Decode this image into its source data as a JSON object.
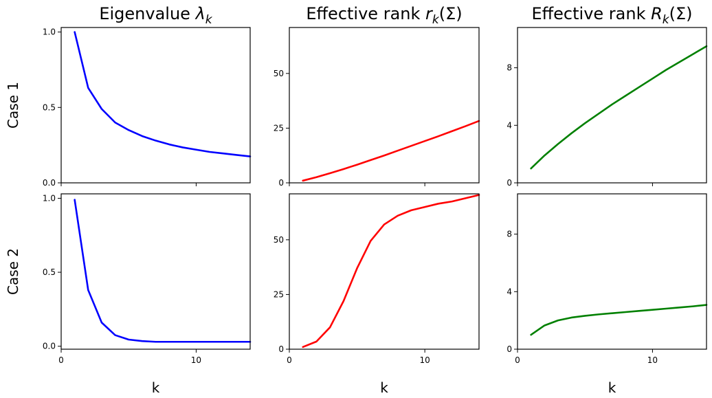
{
  "figure": {
    "column_titles": [
      {
        "text": "Eigenvalue ",
        "math": "λ",
        "sub": "k",
        "tail": ""
      },
      {
        "text": "Effective rank ",
        "math": "r",
        "sub": "k",
        "tail": "(Σ)"
      },
      {
        "text": "Effective rank ",
        "math": "R",
        "sub": "k",
        "tail": "(Σ)"
      }
    ],
    "row_labels": [
      "Case 1",
      "Case 2"
    ],
    "xlabel": "k"
  },
  "chart_data": [
    {
      "type": "line",
      "title": "Eigenvalue λ_k",
      "row_label": "Case 1",
      "xlabel": "",
      "xlim": [
        0,
        14
      ],
      "ylim": [
        0,
        1.03
      ],
      "xticks": [
        0,
        10
      ],
      "yticks": [
        0.0,
        0.5,
        1.0
      ],
      "ytick_labels": [
        "0.0",
        "0.5",
        "1.0"
      ],
      "show_xticklabels": false,
      "color": "#0000ff",
      "x": [
        1,
        2,
        3,
        4,
        5,
        6,
        7,
        8,
        9,
        10,
        11,
        12,
        13,
        14
      ],
      "y": [
        1.0,
        0.63,
        0.49,
        0.4,
        0.35,
        0.31,
        0.28,
        0.255,
        0.235,
        0.22,
        0.205,
        0.195,
        0.185,
        0.175
      ]
    },
    {
      "type": "line",
      "title": "Effective rank r_k(Σ)",
      "row_label": "Case 1",
      "xlabel": "",
      "xlim": [
        0,
        14
      ],
      "ylim": [
        0,
        71
      ],
      "xticks": [
        0,
        10
      ],
      "yticks": [
        0,
        25,
        50
      ],
      "ytick_labels": [
        "0",
        "25",
        "50"
      ],
      "show_xticklabels": false,
      "color": "#ff0000",
      "x": [
        1,
        2,
        3,
        4,
        5,
        6,
        7,
        8,
        9,
        10,
        11,
        12,
        13,
        14
      ],
      "y": [
        1,
        2.6,
        4.4,
        6.3,
        8.3,
        10.4,
        12.5,
        14.7,
        16.9,
        19.1,
        21.3,
        23.6,
        25.9,
        28.3
      ]
    },
    {
      "type": "line",
      "title": "Effective rank R_k(Σ)",
      "row_label": "Case 1",
      "xlabel": "",
      "xlim": [
        0,
        14
      ],
      "ylim": [
        0,
        10.8
      ],
      "xticks": [
        0,
        10
      ],
      "yticks": [
        0,
        4,
        8
      ],
      "ytick_labels": [
        "0",
        "4",
        "8"
      ],
      "show_xticklabels": false,
      "color": "#008000",
      "x": [
        1,
        2,
        3,
        4,
        5,
        6,
        7,
        8,
        9,
        10,
        11,
        12,
        13,
        14
      ],
      "y": [
        1.0,
        1.9,
        2.7,
        3.45,
        4.15,
        4.8,
        5.45,
        6.05,
        6.65,
        7.25,
        7.85,
        8.4,
        8.95,
        9.5
      ]
    },
    {
      "type": "line",
      "title": "",
      "row_label": "Case 2",
      "xlabel": "k",
      "xlim": [
        0,
        14
      ],
      "ylim": [
        -0.02,
        1.03
      ],
      "xticks": [
        0,
        10
      ],
      "yticks": [
        0.0,
        0.5,
        1.0
      ],
      "ytick_labels": [
        "0.0",
        "0.5",
        "1.0"
      ],
      "show_xticklabels": true,
      "color": "#0000ff",
      "x": [
        1,
        2,
        3,
        4,
        5,
        6,
        7,
        8,
        9,
        10,
        11,
        12,
        13,
        14
      ],
      "y": [
        0.99,
        0.38,
        0.16,
        0.075,
        0.045,
        0.035,
        0.03,
        0.03,
        0.03,
        0.03,
        0.03,
        0.03,
        0.03,
        0.03
      ]
    },
    {
      "type": "line",
      "title": "",
      "row_label": "Case 2",
      "xlabel": "k",
      "xlim": [
        0,
        14
      ],
      "ylim": [
        0,
        71
      ],
      "xticks": [
        0,
        10
      ],
      "yticks": [
        0,
        25,
        50
      ],
      "ytick_labels": [
        "0",
        "25",
        "50"
      ],
      "show_xticklabels": true,
      "color": "#ff0000",
      "x": [
        1,
        2,
        3,
        4,
        5,
        6,
        7,
        8,
        9,
        10,
        11,
        12,
        13,
        14
      ],
      "y": [
        1,
        3.5,
        10,
        22,
        37,
        49.5,
        57,
        61,
        63.5,
        65,
        66.5,
        67.5,
        69,
        70.5
      ]
    },
    {
      "type": "line",
      "title": "",
      "row_label": "Case 2",
      "xlabel": "k",
      "xlim": [
        0,
        14
      ],
      "ylim": [
        0,
        10.8
      ],
      "xticks": [
        0,
        10
      ],
      "yticks": [
        0,
        4,
        8
      ],
      "ytick_labels": [
        "0",
        "4",
        "8"
      ],
      "show_xticklabels": true,
      "color": "#008000",
      "x": [
        1,
        2,
        3,
        4,
        5,
        6,
        7,
        8,
        9,
        10,
        11,
        12,
        13,
        14
      ],
      "y": [
        1.0,
        1.65,
        2.0,
        2.2,
        2.32,
        2.42,
        2.5,
        2.58,
        2.66,
        2.74,
        2.82,
        2.9,
        2.98,
        3.08
      ]
    }
  ]
}
